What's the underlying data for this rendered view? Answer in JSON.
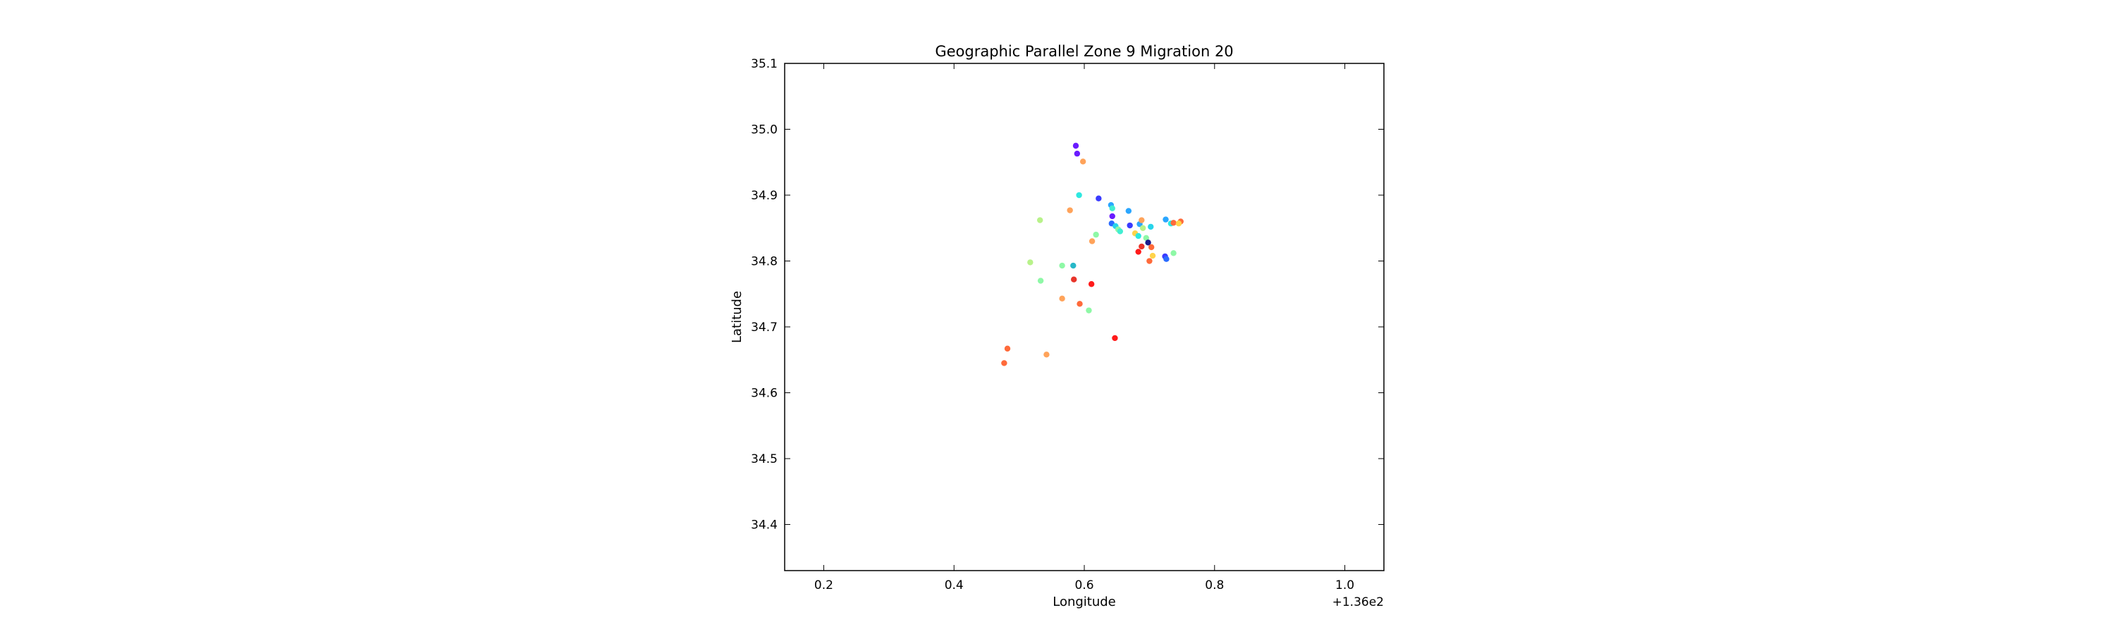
{
  "chart_data": {
    "type": "scatter",
    "title": "Geographic Parallel Zone 9 Migration 20",
    "xlabel": "Longitude",
    "ylabel": "Latitude",
    "x_offset_label": "+1.36e2",
    "xlim": [
      136.14,
      137.06
    ],
    "ylim": [
      34.33,
      35.1
    ],
    "xticks": [
      136.2,
      136.4,
      136.6,
      136.8,
      137.0
    ],
    "xtick_labels": [
      "0.2",
      "0.4",
      "0.6",
      "0.8",
      "1.0"
    ],
    "yticks": [
      34.4,
      34.5,
      34.6,
      34.7,
      34.8,
      34.9,
      35.0,
      35.1
    ],
    "ytick_labels": [
      "34.4",
      "34.5",
      "34.6",
      "34.7",
      "34.8",
      "34.9",
      "35.0",
      "35.1"
    ],
    "grid": false,
    "legend": false,
    "points": [
      {
        "x": 136.587,
        "y": 34.975,
        "color": "#6a1bff"
      },
      {
        "x": 136.589,
        "y": 34.963,
        "color": "#6a1bff"
      },
      {
        "x": 136.598,
        "y": 34.951,
        "color": "#ffa35a"
      },
      {
        "x": 136.592,
        "y": 34.9,
        "color": "#2ee8e0"
      },
      {
        "x": 136.622,
        "y": 34.895,
        "color": "#3a3bff"
      },
      {
        "x": 136.578,
        "y": 34.877,
        "color": "#ffa35a"
      },
      {
        "x": 136.641,
        "y": 34.885,
        "color": "#2aa6ff"
      },
      {
        "x": 136.643,
        "y": 34.88,
        "color": "#42eed2"
      },
      {
        "x": 136.643,
        "y": 34.868,
        "color": "#6a1bff"
      },
      {
        "x": 136.642,
        "y": 34.857,
        "color": "#2a6bff"
      },
      {
        "x": 136.648,
        "y": 34.853,
        "color": "#28d4ea"
      },
      {
        "x": 136.652,
        "y": 34.848,
        "color": "#8ef8a6"
      },
      {
        "x": 136.655,
        "y": 34.845,
        "color": "#42eed2"
      },
      {
        "x": 136.668,
        "y": 34.876,
        "color": "#2aa6ff"
      },
      {
        "x": 136.67,
        "y": 34.854,
        "color": "#3a3bff"
      },
      {
        "x": 136.678,
        "y": 34.842,
        "color": "#ffd34a"
      },
      {
        "x": 136.683,
        "y": 34.838,
        "color": "#2ee8e0"
      },
      {
        "x": 136.685,
        "y": 34.856,
        "color": "#2aa6ff"
      },
      {
        "x": 136.688,
        "y": 34.862,
        "color": "#ffa35a"
      },
      {
        "x": 136.69,
        "y": 34.85,
        "color": "#b8f28a"
      },
      {
        "x": 136.695,
        "y": 34.835,
        "color": "#8ef8a6"
      },
      {
        "x": 136.702,
        "y": 34.852,
        "color": "#28d4ea"
      },
      {
        "x": 136.698,
        "y": 34.828,
        "color": "#1a1a8c"
      },
      {
        "x": 136.703,
        "y": 34.821,
        "color": "#ff6a3a"
      },
      {
        "x": 136.688,
        "y": 34.822,
        "color": "#e8342a"
      },
      {
        "x": 136.683,
        "y": 34.814,
        "color": "#ff1a1a"
      },
      {
        "x": 136.7,
        "y": 34.8,
        "color": "#ff6a3a"
      },
      {
        "x": 136.705,
        "y": 34.808,
        "color": "#ffd34a"
      },
      {
        "x": 136.724,
        "y": 34.807,
        "color": "#3a3bff"
      },
      {
        "x": 136.726,
        "y": 34.803,
        "color": "#2a6bff"
      },
      {
        "x": 136.737,
        "y": 34.812,
        "color": "#8ef8a6"
      },
      {
        "x": 136.725,
        "y": 34.863,
        "color": "#2aa6ff"
      },
      {
        "x": 136.733,
        "y": 34.857,
        "color": "#2ee8e0"
      },
      {
        "x": 136.737,
        "y": 34.858,
        "color": "#ff6a3a"
      },
      {
        "x": 136.748,
        "y": 34.86,
        "color": "#ff6a3a"
      },
      {
        "x": 136.745,
        "y": 34.857,
        "color": "#ffd34a"
      },
      {
        "x": 136.612,
        "y": 34.83,
        "color": "#ffa35a"
      },
      {
        "x": 136.618,
        "y": 34.84,
        "color": "#8ef8a6"
      },
      {
        "x": 136.532,
        "y": 34.862,
        "color": "#b8f28a"
      },
      {
        "x": 136.517,
        "y": 34.798,
        "color": "#b8f28a"
      },
      {
        "x": 136.566,
        "y": 34.793,
        "color": "#8ef8a6"
      },
      {
        "x": 136.583,
        "y": 34.793,
        "color": "#28b8c8"
      },
      {
        "x": 136.533,
        "y": 34.77,
        "color": "#8ef8a6"
      },
      {
        "x": 136.584,
        "y": 34.772,
        "color": "#e8342a"
      },
      {
        "x": 136.611,
        "y": 34.765,
        "color": "#ff1a1a"
      },
      {
        "x": 136.566,
        "y": 34.743,
        "color": "#ffa35a"
      },
      {
        "x": 136.593,
        "y": 34.735,
        "color": "#ff6a3a"
      },
      {
        "x": 136.607,
        "y": 34.725,
        "color": "#8ef8a6"
      },
      {
        "x": 136.647,
        "y": 34.683,
        "color": "#ff1a1a"
      },
      {
        "x": 136.482,
        "y": 34.667,
        "color": "#ff6a3a"
      },
      {
        "x": 136.542,
        "y": 34.658,
        "color": "#ffa35a"
      },
      {
        "x": 136.477,
        "y": 34.645,
        "color": "#ff6a3a"
      }
    ]
  }
}
